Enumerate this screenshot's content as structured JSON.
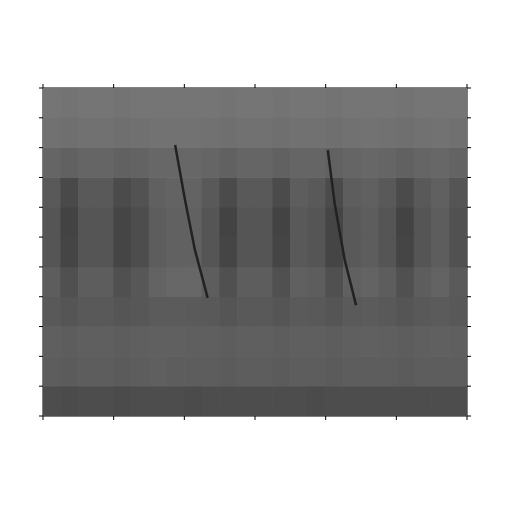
{
  "chart_data": {
    "type": "heatmap",
    "xlim": [
      0,
      6
    ],
    "xticks": [
      0,
      1,
      2,
      3,
      4,
      5,
      6
    ],
    "ylim": [
      0,
      11
    ],
    "yticks": [
      0,
      1,
      2,
      3,
      4,
      5,
      6,
      7,
      8,
      9,
      10,
      11
    ],
    "tick_labels": false,
    "cells": [
      [
        0.6,
        0.62,
        0.6,
        0.6,
        0.62,
        0.6,
        0.6,
        0.6,
        0.62,
        0.6,
        0.6,
        0.6,
        0.6,
        0.6,
        0.6,
        0.62,
        0.6,
        0.6,
        0.6,
        0.6,
        0.6,
        0.6,
        0.6,
        0.6
      ],
      [
        0.4,
        0.42,
        0.4,
        0.4,
        0.42,
        0.4,
        0.38,
        0.4,
        0.4,
        0.4,
        0.42,
        0.4,
        0.4,
        0.42,
        0.4,
        0.4,
        0.42,
        0.4,
        0.4,
        0.4,
        0.42,
        0.4,
        0.4,
        0.4
      ],
      [
        0.38,
        0.4,
        0.38,
        0.38,
        0.4,
        0.38,
        0.36,
        0.36,
        0.38,
        0.38,
        0.4,
        0.38,
        0.38,
        0.4,
        0.38,
        0.38,
        0.4,
        0.38,
        0.36,
        0.38,
        0.4,
        0.38,
        0.36,
        0.38
      ],
      [
        0.45,
        0.5,
        0.45,
        0.45,
        0.5,
        0.47,
        0.42,
        0.42,
        0.44,
        0.45,
        0.5,
        0.45,
        0.45,
        0.5,
        0.44,
        0.45,
        0.5,
        0.44,
        0.42,
        0.45,
        0.5,
        0.45,
        0.42,
        0.46
      ],
      [
        0.4,
        0.56,
        0.4,
        0.4,
        0.56,
        0.48,
        0.32,
        0.28,
        0.28,
        0.4,
        0.56,
        0.4,
        0.4,
        0.56,
        0.36,
        0.4,
        0.56,
        0.36,
        0.32,
        0.4,
        0.56,
        0.4,
        0.32,
        0.44
      ],
      [
        0.5,
        0.7,
        0.5,
        0.5,
        0.7,
        0.6,
        0.4,
        0.35,
        0.35,
        0.5,
        0.7,
        0.5,
        0.5,
        0.7,
        0.45,
        0.5,
        0.7,
        0.45,
        0.4,
        0.5,
        0.7,
        0.5,
        0.4,
        0.55
      ],
      [
        0.5,
        0.72,
        0.5,
        0.5,
        0.7,
        0.6,
        0.4,
        0.35,
        0.35,
        0.5,
        0.72,
        0.5,
        0.5,
        0.72,
        0.45,
        0.5,
        0.7,
        0.45,
        0.4,
        0.5,
        0.72,
        0.5,
        0.4,
        0.55
      ],
      [
        0.45,
        0.65,
        0.45,
        0.45,
        0.63,
        0.54,
        0.36,
        0.32,
        0.32,
        0.45,
        0.63,
        0.45,
        0.45,
        0.63,
        0.4,
        0.45,
        0.63,
        0.4,
        0.36,
        0.45,
        0.63,
        0.45,
        0.36,
        0.5
      ],
      [
        0.3,
        0.35,
        0.3,
        0.3,
        0.35,
        0.32,
        0.28,
        0.28,
        0.28,
        0.3,
        0.35,
        0.3,
        0.3,
        0.35,
        0.3,
        0.3,
        0.35,
        0.3,
        0.28,
        0.3,
        0.35,
        0.3,
        0.28,
        0.32
      ],
      [
        0.15,
        0.18,
        0.15,
        0.15,
        0.18,
        0.16,
        0.14,
        0.14,
        0.14,
        0.15,
        0.18,
        0.15,
        0.15,
        0.18,
        0.15,
        0.15,
        0.18,
        0.15,
        0.14,
        0.15,
        0.18,
        0.15,
        0.14,
        0.16
      ],
      [
        0.1,
        0.12,
        0.1,
        0.1,
        0.12,
        0.1,
        0.1,
        0.1,
        0.1,
        0.1,
        0.12,
        0.1,
        0.1,
        0.12,
        0.1,
        0.1,
        0.12,
        0.1,
        0.1,
        0.1,
        0.12,
        0.1,
        0.1,
        0.1
      ]
    ],
    "lines": [
      {
        "color": "#222222",
        "x": [
          1.87,
          2.01,
          2.15,
          2.33
        ],
        "y": [
          9.09,
          7.24,
          5.57,
          3.96
        ]
      },
      {
        "color": "#222222",
        "x": [
          4.03,
          4.13,
          4.27,
          4.43
        ],
        "y": [
          8.92,
          7.08,
          5.23,
          3.72
        ]
      }
    ]
  }
}
